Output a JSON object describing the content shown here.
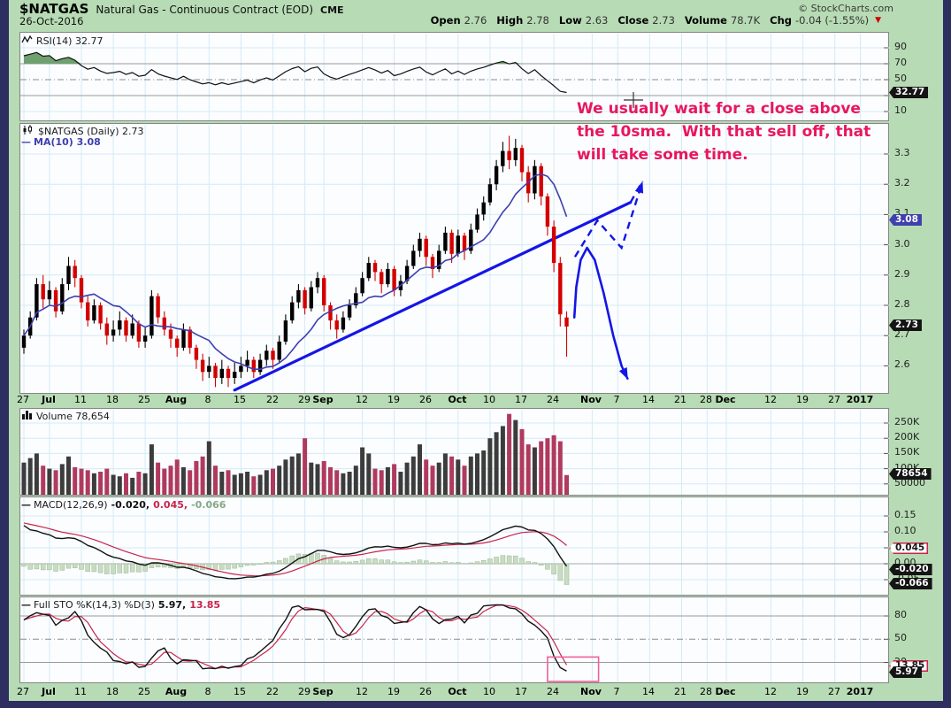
{
  "header": {
    "symbol": "$NATGAS",
    "name": "Natural Gas - Continuous Contract (EOD)",
    "exchange": "CME",
    "date": "26-Oct-2016",
    "copyright": "© StockCharts.com",
    "quote": [
      {
        "l": "Open",
        "v": "2.76"
      },
      {
        "l": "High",
        "v": "2.78"
      },
      {
        "l": "Low",
        "v": "2.63"
      },
      {
        "l": "Close",
        "v": "2.73"
      },
      {
        "l": "Volume",
        "v": "78.7K"
      },
      {
        "l": "Chg",
        "v": "-0.04 (-1.55%)"
      }
    ],
    "chg_arrow": "▼"
  },
  "panels": {
    "rsi": {
      "legend": "RSI(14) 32.77",
      "axis": [
        {
          "t": "90",
          "v": 90
        },
        {
          "t": "70",
          "v": 70
        },
        {
          "t": "50",
          "v": 50
        },
        {
          "t": "10",
          "v": 10
        }
      ],
      "tags": [
        {
          "t": "32.77",
          "v": 32.77,
          "s": "dark"
        }
      ]
    },
    "price": {
      "legend_main": "$NATGAS (Daily) 2.73",
      "legend_ma": "MA(10) 3.08",
      "axis": [
        {
          "t": "3.3",
          "v": 3.3
        },
        {
          "t": "3.2",
          "v": 3.2
        },
        {
          "t": "3.1",
          "v": 3.1
        },
        {
          "t": "3.0",
          "v": 3.0
        },
        {
          "t": "2.9",
          "v": 2.9
        },
        {
          "t": "2.8",
          "v": 2.8
        },
        {
          "t": "2.7",
          "v": 2.7
        },
        {
          "t": "2.6",
          "v": 2.6
        }
      ],
      "tags": [
        {
          "t": "3.08",
          "v": 3.08,
          "s": "blue"
        },
        {
          "t": "2.73",
          "v": 2.73,
          "s": "dark"
        }
      ]
    },
    "volume": {
      "legend": "Volume 78,654",
      "axis": [
        {
          "t": "250K",
          "v": 250
        },
        {
          "t": "200K",
          "v": 200
        },
        {
          "t": "150K",
          "v": 150
        },
        {
          "t": "100K",
          "v": 100
        },
        {
          "t": "50000",
          "v": 50
        }
      ],
      "tags": [
        {
          "t": "78654",
          "v": 78.654,
          "s": "dark"
        }
      ]
    },
    "macd": {
      "name": "MACD(12,26,9)",
      "v1": "-0.020,",
      "v2": "0.045,",
      "v3": "-0.066",
      "axis": [
        {
          "t": "0.15",
          "v": 0.15
        },
        {
          "t": "0.10",
          "v": 0.1
        },
        {
          "t": "0.05",
          "v": 0.05
        },
        {
          "t": "0.00",
          "v": 0.0
        },
        {
          "t": "-0.05",
          "v": -0.05
        }
      ],
      "tags": [
        {
          "t": "0.045",
          "v": 0.045,
          "s": "red"
        },
        {
          "t": "-0.020",
          "v": -0.02,
          "s": "dark"
        },
        {
          "t": "-0.066",
          "v": -0.066,
          "s": "dark"
        }
      ]
    },
    "sto": {
      "name": "Full STO %K(14,3) %D(3)",
      "v1": "5.97,",
      "v2": "13.85",
      "axis": [
        {
          "t": "80",
          "v": 80
        },
        {
          "t": "50",
          "v": 50
        },
        {
          "t": "20",
          "v": 20
        }
      ],
      "tags": [
        {
          "t": "13.85",
          "v": 13.85,
          "s": "red"
        },
        {
          "t": "5.97",
          "v": 5.97,
          "s": "dark"
        }
      ]
    }
  },
  "annotation": {
    "lines": [
      "We usually wait for a close above",
      "the 10sma.  With that sell off, that",
      "will take some time."
    ]
  },
  "x_ticks": [
    {
      "l": "27",
      "i": 0
    },
    {
      "l": "Jul",
      "i": 4,
      "b": 1
    },
    {
      "l": "11",
      "i": 9
    },
    {
      "l": "18",
      "i": 14
    },
    {
      "l": "25",
      "i": 19
    },
    {
      "l": "Aug",
      "i": 24,
      "b": 1
    },
    {
      "l": "8",
      "i": 29
    },
    {
      "l": "15",
      "i": 34
    },
    {
      "l": "22",
      "i": 39
    },
    {
      "l": "29",
      "i": 44
    },
    {
      "l": "Sep",
      "i": 47,
      "b": 1
    },
    {
      "l": "12",
      "i": 53
    },
    {
      "l": "19",
      "i": 58
    },
    {
      "l": "26",
      "i": 63
    },
    {
      "l": "Oct",
      "i": 68,
      "b": 1
    },
    {
      "l": "10",
      "i": 73
    },
    {
      "l": "17",
      "i": 78
    },
    {
      "l": "24",
      "i": 83
    },
    {
      "l": "Nov",
      "i": 89,
      "b": 1
    },
    {
      "l": "7",
      "i": 93
    },
    {
      "l": "14",
      "i": 98
    },
    {
      "l": "21",
      "i": 103
    },
    {
      "l": "28",
      "i": 107
    },
    {
      "l": "Dec",
      "i": 110,
      "b": 1
    },
    {
      "l": "12",
      "i": 117
    },
    {
      "l": "19",
      "i": 122
    },
    {
      "l": "27",
      "i": 127
    },
    {
      "l": "2017",
      "i": 131,
      "b": 1
    }
  ],
  "colors": {
    "page_bg": "#b7dbb4",
    "frame": "#2e2e60",
    "panel_bg": "#fbfdff",
    "grid": "#d5eaf5",
    "grid_gray": "#9a9a9a",
    "candle_up": "#000000",
    "candle_down": "#d40000",
    "ma10": "#3f3fae",
    "trend_blue": "#1515e6",
    "vol_up": "#3c3c3c",
    "vol_down": "#b03a5e",
    "signal_red": "#c9234a",
    "hist_green": "#c8dcc2",
    "annotation_pink": "#e8175d",
    "sto_box_pink": "#f0609a"
  },
  "chart_data": {
    "type": "candlestick",
    "symbol": "$NATGAS",
    "timeframe": "Daily",
    "overlays": [
      "MA(10)"
    ],
    "indicators": [
      "RSI(14)",
      "Volume",
      "MACD(12,26,9)",
      "Full STO %K(14,3) %D(3)"
    ],
    "last_values": {
      "close": 2.73,
      "ma10": 3.08,
      "rsi": 32.77,
      "volume": 78654,
      "macd": -0.02,
      "macd_signal": 0.045,
      "macd_hist": -0.066,
      "sto_k": 5.97,
      "sto_d": 13.85
    },
    "candles": [
      [
        2.66,
        2.72,
        2.64,
        2.7,
        120
      ],
      [
        2.7,
        2.78,
        2.69,
        2.76,
        135
      ],
      [
        2.76,
        2.89,
        2.75,
        2.87,
        150
      ],
      [
        2.87,
        2.9,
        2.79,
        2.82,
        110
      ],
      [
        2.82,
        2.88,
        2.8,
        2.85,
        100
      ],
      [
        2.85,
        2.86,
        2.76,
        2.78,
        95
      ],
      [
        2.78,
        2.89,
        2.77,
        2.87,
        115
      ],
      [
        2.87,
        2.96,
        2.85,
        2.93,
        140
      ],
      [
        2.93,
        2.95,
        2.86,
        2.89,
        105
      ],
      [
        2.89,
        2.9,
        2.79,
        2.81,
        100
      ],
      [
        2.81,
        2.83,
        2.73,
        2.75,
        95
      ],
      [
        2.75,
        2.82,
        2.74,
        2.8,
        85
      ],
      [
        2.8,
        2.81,
        2.72,
        2.74,
        90
      ],
      [
        2.74,
        2.76,
        2.67,
        2.7,
        100
      ],
      [
        2.7,
        2.75,
        2.68,
        2.72,
        80
      ],
      [
        2.72,
        2.78,
        2.7,
        2.75,
        75
      ],
      [
        2.75,
        2.76,
        2.68,
        2.7,
        85
      ],
      [
        2.7,
        2.77,
        2.69,
        2.74,
        70
      ],
      [
        2.74,
        2.75,
        2.66,
        2.68,
        90
      ],
      [
        2.68,
        2.73,
        2.66,
        2.7,
        85
      ],
      [
        2.7,
        2.85,
        2.69,
        2.83,
        180
      ],
      [
        2.83,
        2.84,
        2.74,
        2.76,
        120
      ],
      [
        2.76,
        2.78,
        2.7,
        2.72,
        100
      ],
      [
        2.72,
        2.74,
        2.66,
        2.69,
        110
      ],
      [
        2.69,
        2.7,
        2.63,
        2.66,
        130
      ],
      [
        2.66,
        2.74,
        2.65,
        2.72,
        105
      ],
      [
        2.72,
        2.73,
        2.64,
        2.66,
        95
      ],
      [
        2.66,
        2.67,
        2.59,
        2.62,
        125
      ],
      [
        2.62,
        2.64,
        2.55,
        2.58,
        140
      ],
      [
        2.58,
        2.63,
        2.56,
        2.6,
        190
      ],
      [
        2.6,
        2.61,
        2.53,
        2.56,
        110
      ],
      [
        2.56,
        2.62,
        2.54,
        2.59,
        90
      ],
      [
        2.59,
        2.6,
        2.53,
        2.56,
        95
      ],
      [
        2.56,
        2.61,
        2.54,
        2.58,
        80
      ],
      [
        2.58,
        2.63,
        2.56,
        2.6,
        85
      ],
      [
        2.6,
        2.65,
        2.58,
        2.62,
        90
      ],
      [
        2.62,
        2.63,
        2.56,
        2.58,
        75
      ],
      [
        2.58,
        2.64,
        2.57,
        2.62,
        80
      ],
      [
        2.62,
        2.67,
        2.6,
        2.65,
        95
      ],
      [
        2.65,
        2.66,
        2.59,
        2.62,
        100
      ],
      [
        2.62,
        2.7,
        2.61,
        2.68,
        110
      ],
      [
        2.68,
        2.77,
        2.67,
        2.75,
        130
      ],
      [
        2.75,
        2.83,
        2.74,
        2.81,
        140
      ],
      [
        2.81,
        2.87,
        2.79,
        2.85,
        150
      ],
      [
        2.85,
        2.86,
        2.77,
        2.79,
        200
      ],
      [
        2.79,
        2.88,
        2.78,
        2.86,
        120
      ],
      [
        2.86,
        2.91,
        2.84,
        2.89,
        115
      ],
      [
        2.89,
        2.9,
        2.78,
        2.8,
        125
      ],
      [
        2.8,
        2.81,
        2.72,
        2.75,
        105
      ],
      [
        2.75,
        2.77,
        2.69,
        2.72,
        95
      ],
      [
        2.72,
        2.78,
        2.71,
        2.76,
        85
      ],
      [
        2.76,
        2.82,
        2.75,
        2.8,
        90
      ],
      [
        2.8,
        2.86,
        2.79,
        2.84,
        110
      ],
      [
        2.84,
        2.91,
        2.83,
        2.89,
        170
      ],
      [
        2.89,
        2.96,
        2.88,
        2.94,
        150
      ],
      [
        2.94,
        2.95,
        2.88,
        2.91,
        100
      ],
      [
        2.91,
        2.92,
        2.84,
        2.87,
        95
      ],
      [
        2.87,
        2.94,
        2.86,
        2.92,
        105
      ],
      [
        2.92,
        2.93,
        2.83,
        2.85,
        115
      ],
      [
        2.85,
        2.9,
        2.83,
        2.88,
        90
      ],
      [
        2.88,
        2.95,
        2.87,
        2.93,
        120
      ],
      [
        2.93,
        3.0,
        2.92,
        2.98,
        140
      ],
      [
        2.98,
        3.04,
        2.96,
        3.02,
        180
      ],
      [
        3.02,
        3.03,
        2.93,
        2.96,
        130
      ],
      [
        2.96,
        2.97,
        2.89,
        2.92,
        110
      ],
      [
        2.92,
        3.0,
        2.91,
        2.98,
        120
      ],
      [
        2.98,
        3.06,
        2.97,
        3.04,
        150
      ],
      [
        3.04,
        3.05,
        2.94,
        2.97,
        140
      ],
      [
        2.97,
        3.05,
        2.96,
        3.03,
        130
      ],
      [
        3.03,
        3.04,
        2.95,
        2.98,
        110
      ],
      [
        2.98,
        3.07,
        2.97,
        3.05,
        140
      ],
      [
        3.05,
        3.12,
        3.04,
        3.1,
        150
      ],
      [
        3.1,
        3.16,
        3.08,
        3.14,
        160
      ],
      [
        3.14,
        3.22,
        3.13,
        3.2,
        200
      ],
      [
        3.2,
        3.28,
        3.18,
        3.26,
        220
      ],
      [
        3.26,
        3.34,
        3.24,
        3.31,
        240
      ],
      [
        3.31,
        3.36,
        3.25,
        3.28,
        280
      ],
      [
        3.28,
        3.35,
        3.26,
        3.32,
        260
      ],
      [
        3.32,
        3.33,
        3.21,
        3.24,
        230
      ],
      [
        3.24,
        3.26,
        3.14,
        3.17,
        180
      ],
      [
        3.17,
        3.28,
        3.15,
        3.26,
        170
      ],
      [
        3.26,
        3.27,
        3.13,
        3.16,
        190
      ],
      [
        3.16,
        3.17,
        3.03,
        3.06,
        200
      ],
      [
        3.06,
        3.08,
        2.91,
        2.94,
        210
      ],
      [
        2.94,
        2.96,
        2.73,
        2.77,
        190
      ],
      [
        2.76,
        2.78,
        2.63,
        2.73,
        79
      ]
    ],
    "annotations": {
      "trendline": {
        "from": [
          33,
          2.52
        ],
        "to": [
          95,
          3.14
        ]
      },
      "trend_dashed_ext": [
        [
          95,
          3.14
        ],
        [
          96.6,
          3.2
        ]
      ],
      "zigzag_dashed": [
        [
          86.3,
          2.96
        ],
        [
          89.8,
          3.08
        ],
        [
          93.6,
          2.99
        ],
        [
          96.9,
          3.21
        ]
      ],
      "curve": [
        [
          86.2,
          2.76
        ],
        [
          86.5,
          2.86
        ],
        [
          87.2,
          2.95
        ],
        [
          88.2,
          2.99
        ],
        [
          89.4,
          2.95
        ],
        [
          90.8,
          2.84
        ],
        [
          92.3,
          2.7
        ],
        [
          93.6,
          2.6
        ],
        [
          94.6,
          2.555
        ]
      ],
      "sto_box": {
        "i": [
          82,
          90
        ],
        "v": [
          27,
          -6
        ]
      }
    }
  }
}
